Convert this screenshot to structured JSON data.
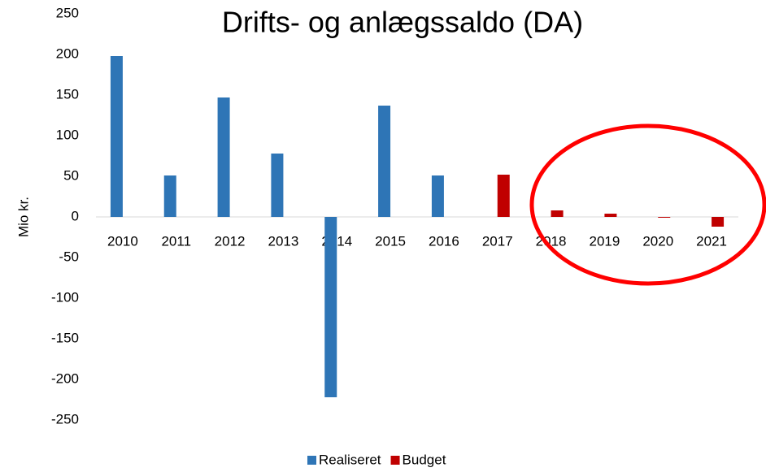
{
  "chart_data": {
    "type": "bar",
    "title": "Drifts- og anlægssaldo (DA)",
    "ylabel": "Mio kr.",
    "categories": [
      "2010",
      "2011",
      "2012",
      "2013",
      "2014",
      "2015",
      "2016",
      "2017",
      "2018",
      "2019",
      "2020",
      "2021"
    ],
    "series": [
      {
        "name": "Realiseret",
        "color": "#2e75b6",
        "values": [
          198,
          51,
          147,
          78,
          -222,
          137,
          51,
          null,
          null,
          null,
          null,
          null
        ]
      },
      {
        "name": "Budget",
        "color": "#c00000",
        "values": [
          null,
          null,
          null,
          null,
          null,
          null,
          null,
          52,
          8,
          4,
          -1,
          -12
        ]
      }
    ],
    "ylim": [
      -250,
      250
    ],
    "yticks": [
      -250,
      -200,
      -150,
      -100,
      -50,
      0,
      50,
      100,
      150,
      200,
      250
    ],
    "grid": false,
    "legend": "bottom"
  }
}
